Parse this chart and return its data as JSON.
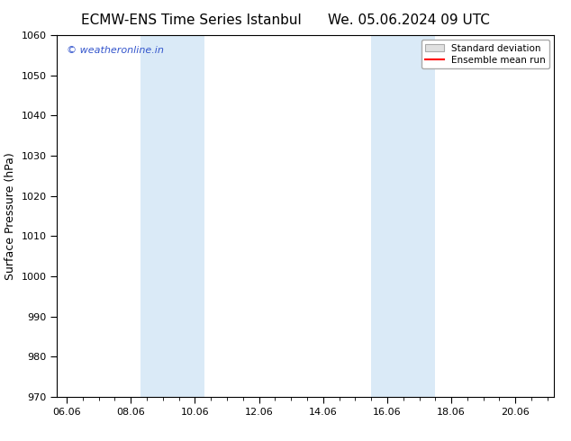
{
  "title_left": "ECMW-ENS Time Series Istanbul",
  "title_right": "We. 05.06.2024 09 UTC",
  "ylabel": "Surface Pressure (hPa)",
  "ylim": [
    970,
    1060
  ],
  "yticks": [
    970,
    980,
    990,
    1000,
    1010,
    1020,
    1030,
    1040,
    1050,
    1060
  ],
  "xlim_start": 5.7,
  "xlim_end": 21.2,
  "xtick_labels": [
    "06.06",
    "08.06",
    "10.06",
    "12.06",
    "14.06",
    "16.06",
    "18.06",
    "20.06"
  ],
  "xtick_positions": [
    6.0,
    8.0,
    10.0,
    12.0,
    14.0,
    16.0,
    18.0,
    20.0
  ],
  "shaded_regions": [
    {
      "xmin": 8.3,
      "xmax": 10.3
    },
    {
      "xmin": 15.5,
      "xmax": 17.5
    }
  ],
  "shaded_color": "#daeaf7",
  "watermark_text": "© weatheronline.in",
  "watermark_color": "#3355cc",
  "legend_std_label": "Standard deviation",
  "legend_mean_label": "Ensemble mean run",
  "legend_std_facecolor": "#e0e0e0",
  "legend_std_edgecolor": "#aaaaaa",
  "legend_mean_color": "red",
  "background_color": "white",
  "title_fontsize": 11,
  "ylabel_fontsize": 9,
  "tick_fontsize": 8,
  "watermark_fontsize": 8,
  "legend_fontsize": 7.5
}
